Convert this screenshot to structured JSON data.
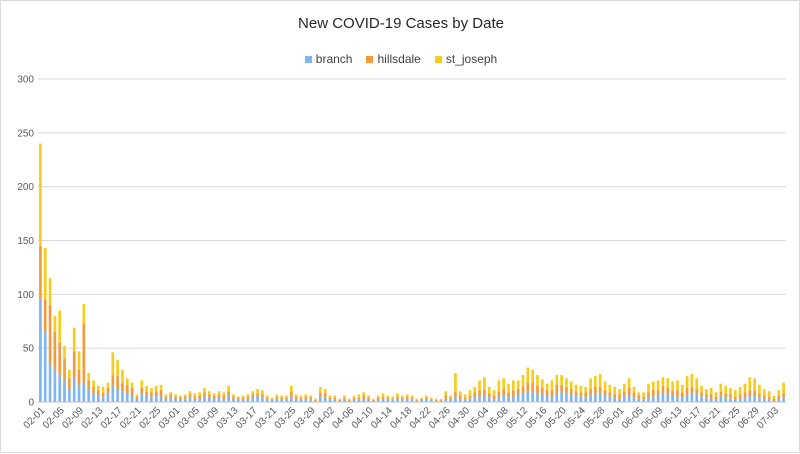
{
  "chart_data": {
    "type": "bar",
    "stacked": true,
    "title": "New COVID-19 Cases by Date",
    "xlabel": "",
    "ylabel": "",
    "ylim": [
      0,
      300
    ],
    "yticks": [
      "0",
      "50",
      "100",
      "150",
      "200",
      "250",
      "300"
    ],
    "grid": true,
    "legend_position": "top",
    "categories": [
      "02-01",
      "02-02",
      "02-03",
      "02-04",
      "02-05",
      "02-06",
      "02-07",
      "02-08",
      "02-09",
      "02-10",
      "02-11",
      "02-12",
      "02-13",
      "02-14",
      "02-15",
      "02-16",
      "02-17",
      "02-18",
      "02-19",
      "02-20",
      "02-21",
      "02-22",
      "02-23",
      "02-24",
      "02-25",
      "02-26",
      "02-27",
      "02-28",
      "03-01",
      "03-02",
      "03-03",
      "03-04",
      "03-05",
      "03-06",
      "03-07",
      "03-08",
      "03-09",
      "03-10",
      "03-11",
      "03-12",
      "03-13",
      "03-14",
      "03-15",
      "03-16",
      "03-17",
      "03-18",
      "03-19",
      "03-20",
      "03-21",
      "03-22",
      "03-23",
      "03-24",
      "03-25",
      "03-26",
      "03-27",
      "03-28",
      "03-29",
      "03-30",
      "03-31",
      "04-01",
      "04-02",
      "04-03",
      "04-04",
      "04-05",
      "04-06",
      "04-07",
      "04-08",
      "04-09",
      "04-10",
      "04-11",
      "04-12",
      "04-13",
      "04-14",
      "04-15",
      "04-16",
      "04-17",
      "04-18",
      "04-19",
      "04-20",
      "04-21",
      "04-22",
      "04-23",
      "04-24",
      "04-25",
      "04-26",
      "04-27",
      "04-28",
      "04-29",
      "04-30",
      "05-01",
      "05-02",
      "05-03",
      "05-04",
      "05-05",
      "05-06",
      "05-07",
      "05-08",
      "05-09",
      "05-10",
      "05-11",
      "05-12",
      "05-13",
      "05-14",
      "05-15",
      "05-16",
      "05-17",
      "05-18",
      "05-19",
      "05-20",
      "05-21",
      "05-22",
      "05-23",
      "05-24",
      "05-25",
      "05-26",
      "05-27",
      "05-28",
      "05-29",
      "05-30",
      "05-31",
      "06-01",
      "06-02",
      "06-03",
      "06-04",
      "06-05",
      "06-06",
      "06-07",
      "06-08",
      "06-09",
      "06-10",
      "06-11",
      "06-12",
      "06-13",
      "06-14",
      "06-15",
      "06-16",
      "06-17",
      "06-18",
      "06-19",
      "06-20",
      "06-21",
      "06-22",
      "06-23",
      "06-24",
      "06-25",
      "06-26",
      "06-27",
      "06-28",
      "06-29",
      "06-30",
      "07-01",
      "07-02",
      "07-03",
      "07-04",
      "07-05"
    ],
    "x_tick_labels": [
      "02-01",
      "02-05",
      "02-09",
      "02-13",
      "02-17",
      "02-21",
      "02-25",
      "03-01",
      "03-05",
      "03-09",
      "03-13",
      "03-17",
      "03-21",
      "03-25",
      "03-29",
      "04-02",
      "04-06",
      "04-10",
      "04-14",
      "04-18",
      "04-22",
      "04-26",
      "04-30",
      "05-04",
      "05-08",
      "05-12",
      "05-16",
      "05-20",
      "05-24",
      "05-28",
      "06-01",
      "06-05",
      "06-09",
      "06-13",
      "06-17",
      "06-21",
      "06-25",
      "06-29",
      "07-03"
    ],
    "series": [
      {
        "name": "branch",
        "color": "#7eb6f0",
        "values": [
          95,
          65,
          35,
          30,
          25,
          20,
          12,
          22,
          15,
          18,
          12,
          8,
          6,
          5,
          8,
          15,
          12,
          10,
          8,
          6,
          3,
          8,
          6,
          5,
          6,
          5,
          3,
          4,
          3,
          2,
          3,
          4,
          3,
          3,
          5,
          4,
          3,
          4,
          3,
          6,
          3,
          2,
          2,
          3,
          4,
          5,
          4,
          2,
          2,
          3,
          2,
          2,
          4,
          3,
          2,
          3,
          2,
          1,
          5,
          4,
          2,
          2,
          1,
          2,
          1,
          2,
          2,
          3,
          2,
          1,
          2,
          3,
          2,
          2,
          3,
          2,
          3,
          2,
          1,
          2,
          2,
          2,
          1,
          1,
          3,
          2,
          4,
          3,
          2,
          3,
          4,
          5,
          6,
          4,
          3,
          5,
          6,
          4,
          5,
          7,
          8,
          10,
          9,
          8,
          7,
          6,
          5,
          8,
          9,
          8,
          7,
          6,
          5,
          4,
          6,
          7,
          8,
          6,
          5,
          4,
          3,
          5,
          6,
          4,
          3,
          2,
          4,
          5,
          6,
          8,
          7,
          6,
          5,
          4,
          6,
          8,
          7,
          5,
          4,
          3,
          2,
          5,
          4,
          3,
          2,
          3,
          4,
          5,
          6,
          4,
          3,
          2,
          1,
          3,
          4
        ]
      },
      {
        "name": "hillsdale",
        "color": "#f59a3b",
        "values": [
          50,
          30,
          55,
          35,
          30,
          20,
          10,
          25,
          15,
          55,
          8,
          6,
          5,
          4,
          5,
          10,
          12,
          8,
          8,
          7,
          2,
          5,
          4,
          4,
          4,
          6,
          2,
          3,
          2,
          2,
          2,
          3,
          2,
          3,
          4,
          3,
          3,
          3,
          3,
          4,
          2,
          2,
          2,
          2,
          3,
          3,
          3,
          2,
          1,
          2,
          2,
          2,
          6,
          2,
          2,
          2,
          2,
          1,
          4,
          4,
          2,
          2,
          1,
          2,
          1,
          2,
          2,
          3,
          2,
          1,
          2,
          2,
          2,
          1,
          2,
          2,
          2,
          2,
          1,
          1,
          2,
          1,
          1,
          1,
          3,
          2,
          6,
          3,
          2,
          3,
          5,
          6,
          5,
          4,
          3,
          5,
          6,
          5,
          6,
          5,
          7,
          8,
          9,
          7,
          6,
          5,
          6,
          8,
          7,
          6,
          5,
          4,
          4,
          5,
          6,
          7,
          6,
          5,
          4,
          3,
          4,
          5,
          7,
          5,
          3,
          3,
          5,
          6,
          5,
          7,
          6,
          5,
          6,
          5,
          7,
          6,
          5,
          4,
          3,
          4,
          3,
          5,
          4,
          4,
          3,
          4,
          5,
          6,
          5,
          4,
          3,
          3,
          2,
          3,
          4
        ]
      },
      {
        "name": "st_joseph",
        "color": "#f7cc1a",
        "values": [
          95,
          48,
          25,
          15,
          30,
          12,
          8,
          22,
          17,
          18,
          7,
          6,
          4,
          5,
          5,
          21,
          15,
          12,
          6,
          5,
          2,
          7,
          5,
          4,
          5,
          5,
          2,
          2,
          2,
          2,
          2,
          3,
          3,
          3,
          4,
          3,
          2,
          3,
          3,
          5,
          2,
          1,
          2,
          2,
          3,
          4,
          4,
          2,
          1,
          2,
          2,
          2,
          5,
          2,
          2,
          2,
          2,
          1,
          5,
          4,
          2,
          2,
          1,
          2,
          1,
          2,
          3,
          3,
          2,
          1,
          2,
          3,
          2,
          2,
          3,
          2,
          2,
          2,
          1,
          1,
          2,
          1,
          1,
          1,
          4,
          2,
          17,
          4,
          3,
          5,
          5,
          9,
          12,
          6,
          5,
          10,
          10,
          8,
          9,
          8,
          10,
          14,
          12,
          10,
          8,
          6,
          9,
          9,
          9,
          8,
          7,
          6,
          6,
          5,
          10,
          10,
          12,
          8,
          7,
          7,
          5,
          7,
          9,
          5,
          3,
          4,
          8,
          8,
          9,
          8,
          9,
          8,
          9,
          7,
          11,
          12,
          10,
          6,
          5,
          6,
          4,
          7,
          7,
          6,
          6,
          7,
          8,
          12,
          11,
          8,
          6,
          5,
          3,
          5,
          10
        ]
      }
    ]
  }
}
